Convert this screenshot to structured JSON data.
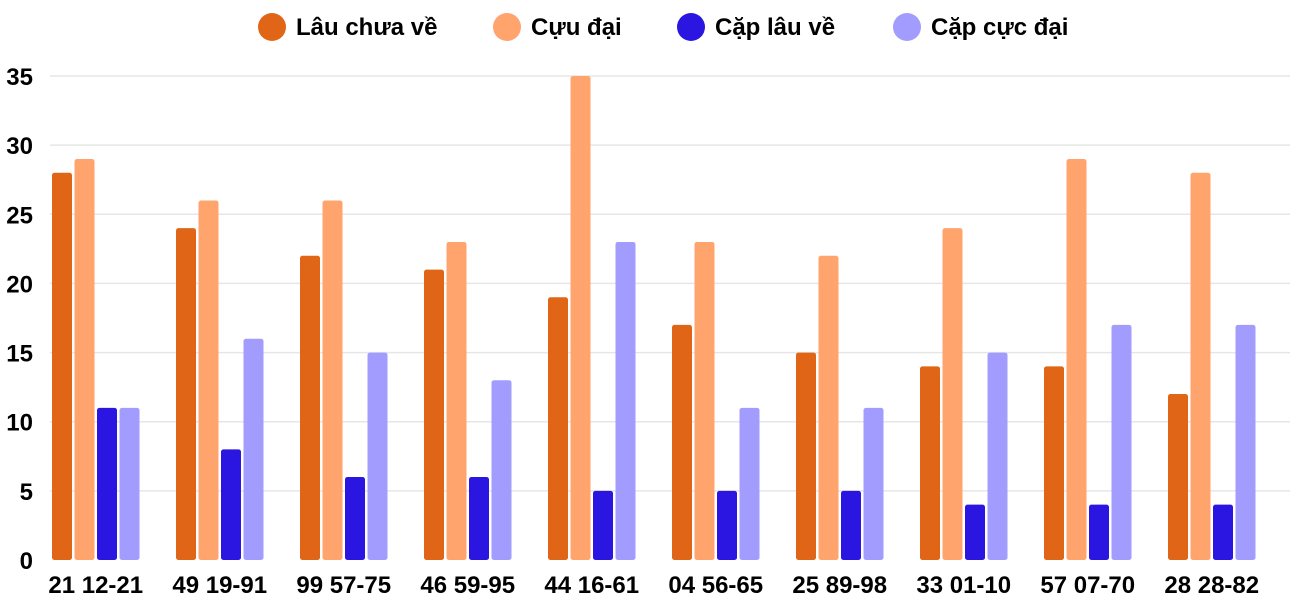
{
  "chart_data": {
    "type": "bar",
    "title": "",
    "xlabel": "",
    "ylabel": "",
    "ylim": [
      0,
      35
    ],
    "yticks": [
      0,
      5,
      10,
      15,
      20,
      25,
      30,
      35
    ],
    "grid": true,
    "legend_position": "top-center",
    "categories": [
      "21 12-21",
      "49 19-91",
      "99 57-75",
      "46 59-95",
      "44 16-61",
      "04 56-65",
      "25 89-98",
      "33 01-10",
      "57 07-70",
      "28 28-82"
    ],
    "series": [
      {
        "name": "Lâu chưa về",
        "color": "#e06516",
        "values": [
          28,
          24,
          22,
          21,
          19,
          17,
          15,
          14,
          14,
          12
        ]
      },
      {
        "name": "Cựu đại",
        "color": "#ffa46c",
        "values": [
          29,
          26,
          26,
          23,
          35,
          23,
          22,
          24,
          29,
          28
        ]
      },
      {
        "name": "Cặp lâu về",
        "color": "#2a16e0",
        "values": [
          11,
          8,
          6,
          6,
          5,
          5,
          5,
          4,
          4,
          4
        ]
      },
      {
        "name": "Cặp cực đại",
        "color": "#a29cff",
        "values": [
          11,
          16,
          15,
          13,
          23,
          11,
          11,
          15,
          17,
          17
        ]
      }
    ]
  }
}
